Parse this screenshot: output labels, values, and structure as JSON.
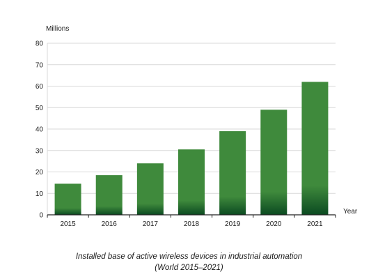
{
  "chart_data": {
    "type": "bar",
    "categories": [
      "2015",
      "2016",
      "2017",
      "2018",
      "2019",
      "2020",
      "2021"
    ],
    "values": [
      14.5,
      18.5,
      24,
      30.5,
      39,
      49,
      62
    ],
    "ylabel": "Millions",
    "xlabel": "Year",
    "ylim": [
      0,
      80
    ],
    "yticks": [
      0,
      10,
      20,
      30,
      40,
      50,
      60,
      70,
      80
    ],
    "title": "Installed base of active wireless devices in industrial automation",
    "subtitle": "(World 2015–2021)",
    "grid": true,
    "bar_color": "#3f8a3c",
    "bar_color_dark": "#0b4a21"
  }
}
